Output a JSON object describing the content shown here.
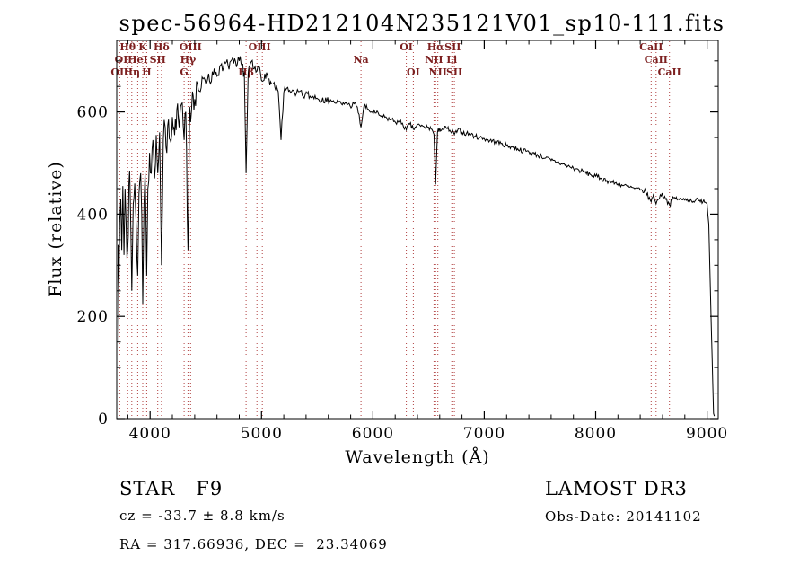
{
  "title": "spec-56964-HD212104N235121V01_sp10-111.fits",
  "footer": {
    "class_label": "STAR   F9",
    "survey": "LAMOST DR3",
    "cz": "cz = -33.7 ± 8.8 km/s",
    "obs_date": "Obs-Date: 20141102",
    "coords": "RA = 317.66936, DEC =  23.34069"
  },
  "chart_data": {
    "type": "line",
    "title": "spec-56964-HD212104N235121V01_sp10-111.fits",
    "xlabel": "Wavelength (Å)",
    "ylabel": "Flux (relative)",
    "xlim": [
      3700,
      9100
    ],
    "ylim": [
      0,
      740
    ],
    "xticks": [
      4000,
      5000,
      6000,
      7000,
      8000,
      9000
    ],
    "yticks": [
      0,
      200,
      400,
      600
    ],
    "x_minor_step": 200,
    "y_minor_step": 50,
    "grid": false,
    "legend": "none",
    "line_color": "#000000",
    "marker_line_color": "#b04040",
    "marker_label_color": "#7c1f1f",
    "spectral_lines": [
      3727,
      3798,
      3835,
      3889,
      3934,
      3969,
      4068,
      4102,
      4305,
      4340,
      4363,
      4861,
      4959,
      5007,
      5893,
      6300,
      6363,
      6548,
      6563,
      6583,
      6708,
      6717,
      6731,
      8498,
      8542,
      8662
    ],
    "line_labels": [
      {
        "text": "Hθ",
        "wavelength": 3798,
        "row": 0
      },
      {
        "text": "K",
        "wavelength": 3934,
        "row": 0
      },
      {
        "text": "Hδ",
        "wavelength": 4102,
        "row": 0
      },
      {
        "text": "OI",
        "wavelength": 3740,
        "row": 1
      },
      {
        "text": "HeI",
        "wavelength": 3889,
        "row": 1
      },
      {
        "text": "SII",
        "wavelength": 4068,
        "row": 1
      },
      {
        "text": "OII",
        "wavelength": 3727,
        "row": 2
      },
      {
        "text": "Hη",
        "wavelength": 3835,
        "row": 2
      },
      {
        "text": "H",
        "wavelength": 3969,
        "row": 2
      },
      {
        "text": "OIII",
        "wavelength": 4363,
        "row": 0
      },
      {
        "text": "Hγ",
        "wavelength": 4340,
        "row": 1
      },
      {
        "text": "G",
        "wavelength": 4305,
        "row": 2
      },
      {
        "text": "OIII",
        "wavelength": 4983,
        "row": 0
      },
      {
        "text": "Hβ",
        "wavelength": 4861,
        "row": 2
      },
      {
        "text": "Na",
        "wavelength": 5893,
        "row": 1
      },
      {
        "text": "OI",
        "wavelength": 6300,
        "row": 0
      },
      {
        "text": "OI",
        "wavelength": 6363,
        "row": 2
      },
      {
        "text": "Hα",
        "wavelength": 6563,
        "row": 0
      },
      {
        "text": "SII",
        "wavelength": 6717,
        "row": 0
      },
      {
        "text": "NII",
        "wavelength": 6548,
        "row": 1
      },
      {
        "text": "Li",
        "wavelength": 6708,
        "row": 1
      },
      {
        "text": "NII",
        "wavelength": 6583,
        "row": 2
      },
      {
        "text": "SII",
        "wavelength": 6731,
        "row": 2
      },
      {
        "text": "CaII",
        "wavelength": 8498,
        "row": 0
      },
      {
        "text": "CaII",
        "wavelength": 8542,
        "row": 1
      },
      {
        "text": "CaII",
        "wavelength": 8662,
        "row": 2
      }
    ],
    "noise_regions": [
      {
        "from": 3700,
        "to": 4000,
        "amp": 42
      },
      {
        "from": 4000,
        "to": 4450,
        "amp": 28
      },
      {
        "from": 4450,
        "to": 5000,
        "amp": 13
      },
      {
        "from": 5000,
        "to": 5600,
        "amp": 8
      },
      {
        "from": 5600,
        "to": 6800,
        "amp": 6
      },
      {
        "from": 6800,
        "to": 9000,
        "amp": 5
      },
      {
        "from": 9000,
        "to": 9100,
        "amp": 2
      }
    ],
    "points": [
      [
        3705,
        150
      ],
      [
        3712,
        340
      ],
      [
        3720,
        255
      ],
      [
        3727,
        385
      ],
      [
        3736,
        430
      ],
      [
        3745,
        330
      ],
      [
        3755,
        455
      ],
      [
        3765,
        320
      ],
      [
        3775,
        450
      ],
      [
        3785,
        380
      ],
      [
        3798,
        330
      ],
      [
        3810,
        460
      ],
      [
        3822,
        430
      ],
      [
        3835,
        250
      ],
      [
        3848,
        420
      ],
      [
        3862,
        460
      ],
      [
        3875,
        380
      ],
      [
        3889,
        280
      ],
      [
        3900,
        440
      ],
      [
        3915,
        480
      ],
      [
        3925,
        400
      ],
      [
        3934,
        225
      ],
      [
        3945,
        420
      ],
      [
        3955,
        480
      ],
      [
        3969,
        280
      ],
      [
        3980,
        450
      ],
      [
        3995,
        520
      ],
      [
        4010,
        480
      ],
      [
        4025,
        545
      ],
      [
        4040,
        470
      ],
      [
        4055,
        555
      ],
      [
        4068,
        480
      ],
      [
        4085,
        560
      ],
      [
        4102,
        300
      ],
      [
        4118,
        545
      ],
      [
        4135,
        570
      ],
      [
        4150,
        520
      ],
      [
        4165,
        585
      ],
      [
        4180,
        545
      ],
      [
        4200,
        590
      ],
      [
        4220,
        555
      ],
      [
        4240,
        605
      ],
      [
        4260,
        570
      ],
      [
        4280,
        615
      ],
      [
        4305,
        545
      ],
      [
        4320,
        600
      ],
      [
        4340,
        330
      ],
      [
        4355,
        610
      ],
      [
        4363,
        580
      ],
      [
        4380,
        640
      ],
      [
        4400,
        625
      ],
      [
        4425,
        655
      ],
      [
        4450,
        640
      ],
      [
        4475,
        665
      ],
      [
        4500,
        655
      ],
      [
        4525,
        675
      ],
      [
        4550,
        660
      ],
      [
        4575,
        685
      ],
      [
        4600,
        670
      ],
      [
        4625,
        690
      ],
      [
        4650,
        680
      ],
      [
        4675,
        695
      ],
      [
        4700,
        690
      ],
      [
        4725,
        700
      ],
      [
        4750,
        695
      ],
      [
        4775,
        688
      ],
      [
        4800,
        700
      ],
      [
        4825,
        690
      ],
      [
        4845,
        678
      ],
      [
        4861,
        480
      ],
      [
        4880,
        675
      ],
      [
        4900,
        695
      ],
      [
        4925,
        685
      ],
      [
        4950,
        678
      ],
      [
        4975,
        688
      ],
      [
        5007,
        660
      ],
      [
        5030,
        675
      ],
      [
        5060,
        665
      ],
      [
        5090,
        655
      ],
      [
        5120,
        648
      ],
      [
        5150,
        640
      ],
      [
        5175,
        545
      ],
      [
        5200,
        638
      ],
      [
        5235,
        648
      ],
      [
        5270,
        640
      ],
      [
        5305,
        632
      ],
      [
        5340,
        640
      ],
      [
        5375,
        630
      ],
      [
        5410,
        636
      ],
      [
        5445,
        628
      ],
      [
        5480,
        632
      ],
      [
        5515,
        624
      ],
      [
        5550,
        628
      ],
      [
        5585,
        620
      ],
      [
        5620,
        624
      ],
      [
        5655,
        618
      ],
      [
        5690,
        620
      ],
      [
        5725,
        614
      ],
      [
        5760,
        618
      ],
      [
        5795,
        612
      ],
      [
        5830,
        616
      ],
      [
        5860,
        610
      ],
      [
        5893,
        570
      ],
      [
        5920,
        612
      ],
      [
        5950,
        606
      ],
      [
        5985,
        600
      ],
      [
        6020,
        598
      ],
      [
        6055,
        594
      ],
      [
        6090,
        590
      ],
      [
        6125,
        588
      ],
      [
        6160,
        585
      ],
      [
        6195,
        582
      ],
      [
        6230,
        580
      ],
      [
        6265,
        578
      ],
      [
        6300,
        565
      ],
      [
        6330,
        576
      ],
      [
        6363,
        566
      ],
      [
        6395,
        574
      ],
      [
        6430,
        572
      ],
      [
        6465,
        570
      ],
      [
        6500,
        570
      ],
      [
        6530,
        566
      ],
      [
        6548,
        556
      ],
      [
        6563,
        458
      ],
      [
        6580,
        560
      ],
      [
        6600,
        568
      ],
      [
        6630,
        566
      ],
      [
        6660,
        568
      ],
      [
        6690,
        564
      ],
      [
        6708,
        558
      ],
      [
        6720,
        562
      ],
      [
        6731,
        556
      ],
      [
        6760,
        564
      ],
      [
        6800,
        560
      ],
      [
        6840,
        558
      ],
      [
        6880,
        556
      ],
      [
        6920,
        552
      ],
      [
        6960,
        550
      ],
      [
        7000,
        548
      ],
      [
        7050,
        544
      ],
      [
        7100,
        542
      ],
      [
        7150,
        538
      ],
      [
        7200,
        534
      ],
      [
        7250,
        532
      ],
      [
        7300,
        528
      ],
      [
        7350,
        524
      ],
      [
        7400,
        522
      ],
      [
        7450,
        518
      ],
      [
        7500,
        514
      ],
      [
        7550,
        510
      ],
      [
        7600,
        505
      ],
      [
        7650,
        502
      ],
      [
        7700,
        498
      ],
      [
        7750,
        494
      ],
      [
        7800,
        490
      ],
      [
        7850,
        486
      ],
      [
        7900,
        482
      ],
      [
        7950,
        478
      ],
      [
        8000,
        474
      ],
      [
        8050,
        470
      ],
      [
        8100,
        466
      ],
      [
        8150,
        462
      ],
      [
        8200,
        459
      ],
      [
        8250,
        456
      ],
      [
        8300,
        453
      ],
      [
        8350,
        450
      ],
      [
        8400,
        447
      ],
      [
        8450,
        444
      ],
      [
        8498,
        424
      ],
      [
        8520,
        440
      ],
      [
        8542,
        420
      ],
      [
        8580,
        438
      ],
      [
        8620,
        435
      ],
      [
        8662,
        418
      ],
      [
        8700,
        432
      ],
      [
        8740,
        430
      ],
      [
        8780,
        428
      ],
      [
        8820,
        430
      ],
      [
        8860,
        426
      ],
      [
        8900,
        428
      ],
      [
        8940,
        424
      ],
      [
        8970,
        428
      ],
      [
        9000,
        420
      ],
      [
        9015,
        380
      ],
      [
        9030,
        250
      ],
      [
        9045,
        120
      ],
      [
        9058,
        10
      ],
      [
        9065,
        5
      ]
    ]
  }
}
